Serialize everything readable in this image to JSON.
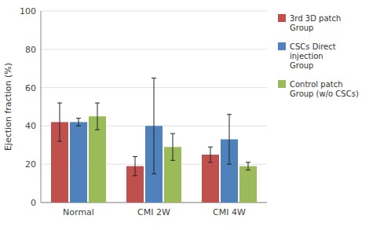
{
  "chart_data": {
    "type": "bar",
    "categories": [
      "Normal",
      "CMI 2W",
      "CMI 4W"
    ],
    "series": [
      {
        "name": "3rd 3D patch\nGroup",
        "color": "#C0504D",
        "values": [
          42,
          19,
          25
        ],
        "errors": [
          10,
          5,
          4
        ]
      },
      {
        "name": "CSCs Direct\ninjection\nGroup",
        "color": "#4F81BD",
        "values": [
          42,
          40,
          33
        ],
        "errors": [
          2,
          25,
          13
        ]
      },
      {
        "name": "Control patch\nGroup (w/o CSCs)",
        "color": "#9BBB59",
        "values": [
          45,
          29,
          19
        ],
        "errors": [
          7,
          7,
          2
        ]
      }
    ],
    "ylabel": "Ejection fraction (%)",
    "ylim": [
      0,
      100
    ],
    "yticks": [
      0,
      20,
      40,
      60,
      80,
      100
    ],
    "grid": true,
    "legend": "right"
  }
}
